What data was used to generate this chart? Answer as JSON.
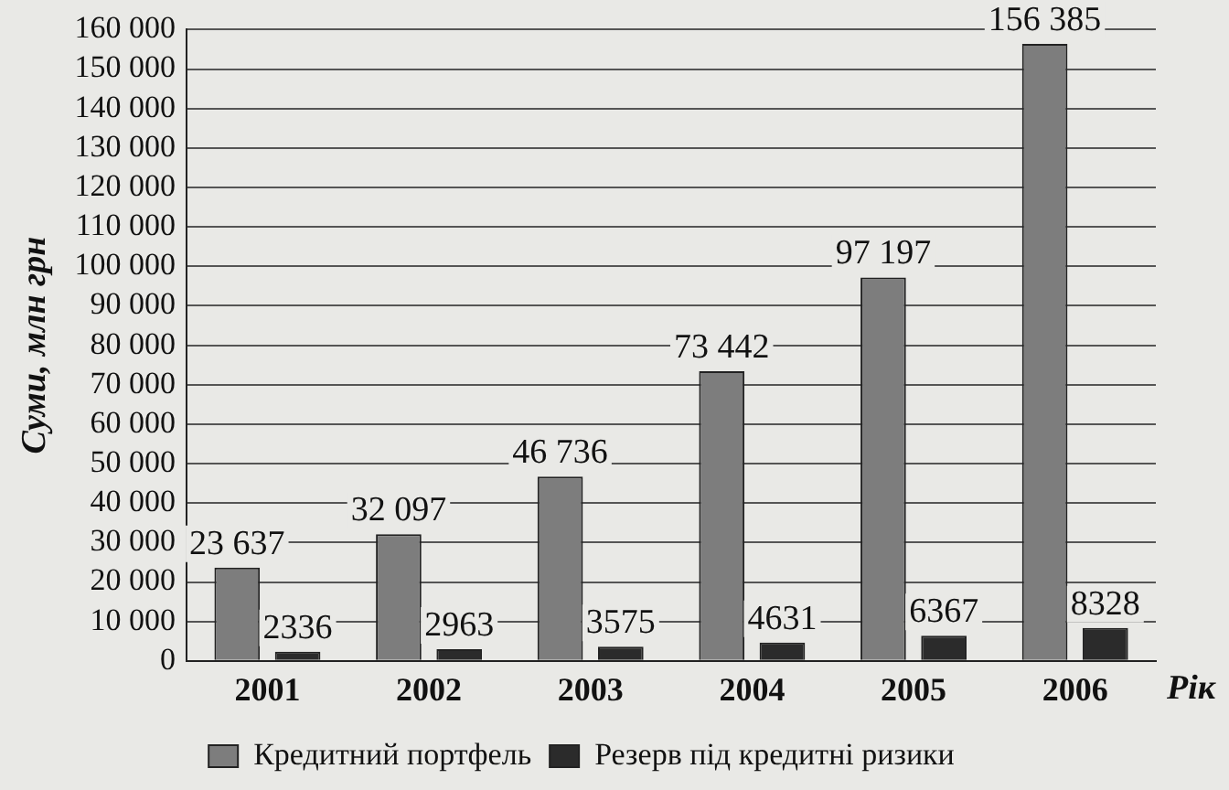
{
  "chart_data": {
    "type": "bar",
    "categories": [
      "2001",
      "2002",
      "2003",
      "2004",
      "2005",
      "2006"
    ],
    "series": [
      {
        "name": "Кредитний портфель",
        "color": "#7d7d7d",
        "values": [
          23637,
          32097,
          46736,
          73442,
          97197,
          156385
        ],
        "value_labels": [
          "23 637",
          "32 097",
          "46 736",
          "73 442",
          "97 197",
          "156 385"
        ]
      },
      {
        "name": "Резерв під кредитні ризики",
        "color": "#2b2b2b",
        "values": [
          2336,
          2963,
          3575,
          4631,
          6367,
          8328
        ],
        "value_labels": [
          "2336",
          "2963",
          "3575",
          "4631",
          "6367",
          "8328"
        ]
      }
    ],
    "ylabel": "Суми, млн грн",
    "xlabel": "Рік",
    "ylim": [
      0,
      160000
    ],
    "yticks": [
      0,
      {
        "value": 10000,
        "label": "10 000"
      },
      {
        "value": 20000,
        "label": "20 000"
      },
      {
        "value": 30000,
        "label": "30 000"
      },
      {
        "value": 40000,
        "label": "40 000"
      },
      {
        "value": 50000,
        "label": "50 000"
      },
      {
        "value": 60000,
        "label": "60 000"
      },
      {
        "value": 70000,
        "label": "70 000"
      },
      {
        "value": 80000,
        "label": "80 000"
      },
      {
        "value": 90000,
        "label": "90 000"
      },
      {
        "value": 100000,
        "label": "100 000"
      },
      {
        "value": 110000,
        "label": "110 000"
      },
      {
        "value": 120000,
        "label": "120 000"
      },
      {
        "value": 130000,
        "label": "130 000"
      },
      {
        "value": 140000,
        "label": "140 000"
      },
      {
        "value": 150000,
        "label": "150 000"
      },
      {
        "value": 160000,
        "label": "160 000"
      }
    ],
    "grid": "y",
    "legend": "bottom"
  }
}
